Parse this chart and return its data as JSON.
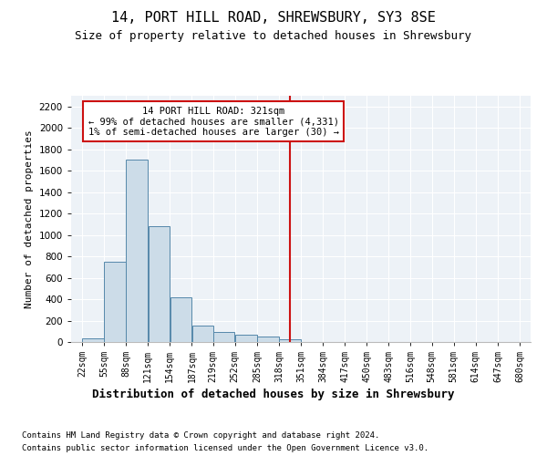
{
  "title1": "14, PORT HILL ROAD, SHREWSBURY, SY3 8SE",
  "title2": "Size of property relative to detached houses in Shrewsbury",
  "xlabel": "Distribution of detached houses by size in Shrewsbury",
  "ylabel": "Number of detached properties",
  "footnote1": "Contains HM Land Registry data © Crown copyright and database right 2024.",
  "footnote2": "Contains public sector information licensed under the Open Government Licence v3.0.",
  "bar_color": "#ccdce8",
  "bar_edge_color": "#5588aa",
  "vline_color": "#cc1111",
  "background_color": "#edf2f7",
  "bins_left": [
    22,
    55,
    88,
    121,
    154,
    187,
    219,
    252,
    285,
    318,
    351,
    384,
    417,
    450,
    483,
    516,
    548,
    581,
    614,
    647
  ],
  "bin_width": 33,
  "bin_labels": [
    "22sqm",
    "55sqm",
    "88sqm",
    "121sqm",
    "154sqm",
    "187sqm",
    "219sqm",
    "252sqm",
    "285sqm",
    "318sqm",
    "351sqm",
    "384sqm",
    "417sqm",
    "450sqm",
    "483sqm",
    "516sqm",
    "548sqm",
    "581sqm",
    "614sqm",
    "647sqm",
    "680sqm"
  ],
  "counts": [
    30,
    750,
    1700,
    1080,
    420,
    150,
    95,
    68,
    50,
    28,
    0,
    0,
    0,
    0,
    0,
    0,
    0,
    0,
    0,
    0
  ],
  "vline_x_bin": 318,
  "annotation_text1": "14 PORT HILL ROAD: 321sqm",
  "annotation_text2": "← 99% of detached houses are smaller (4,331)",
  "annotation_text3": "1% of semi-detached houses are larger (30) →",
  "ylim": [
    0,
    2300
  ],
  "yticks": [
    0,
    200,
    400,
    600,
    800,
    1000,
    1200,
    1400,
    1600,
    1800,
    2000,
    2200
  ],
  "xmin": 22,
  "xmax": 680,
  "title1_fontsize": 11,
  "title2_fontsize": 9,
  "ylabel_fontsize": 8,
  "xlabel_fontsize": 9,
  "tick_fontsize": 7,
  "annot_fontsize": 7.5,
  "footnote_fontsize": 6.5
}
